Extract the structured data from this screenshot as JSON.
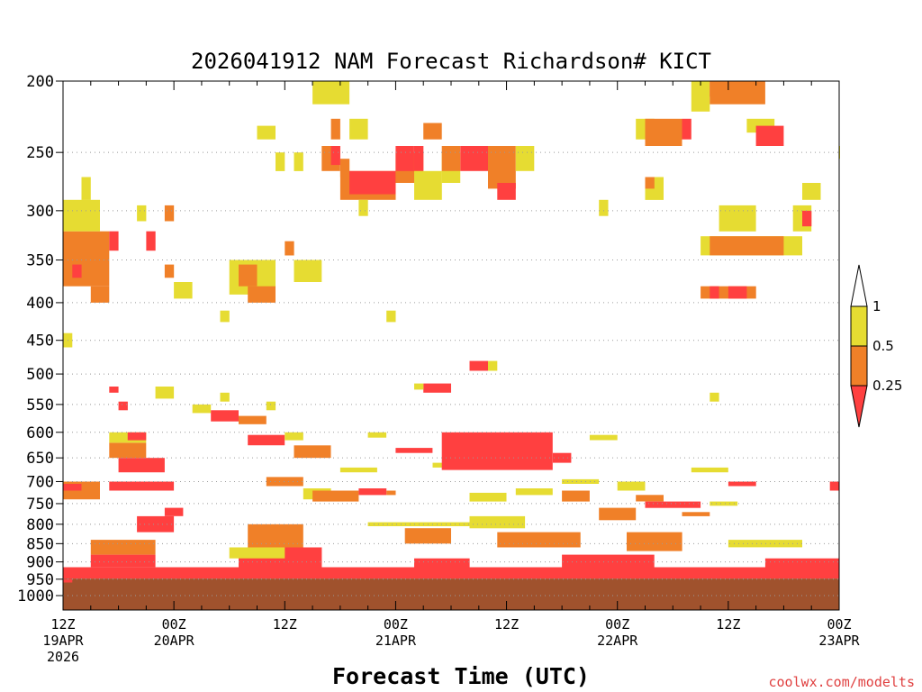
{
  "chart_data": {
    "type": "heatmap",
    "title": "2026041912 NAM Forecast Richardson# KICT",
    "xlabel": "Forecast Time (UTC)",
    "ylabel": "",
    "credit": "coolwx.com/modelts",
    "y_scale": "log-pressure",
    "y_range_hPa": [
      1000,
      200
    ],
    "y_ticks": [
      "200",
      "250",
      "300",
      "350",
      "400",
      "450",
      "500",
      "550",
      "600",
      "650",
      "700",
      "750",
      "800",
      "850",
      "900",
      "950",
      "1000"
    ],
    "x_range_hours": [
      0,
      84
    ],
    "x_ticks": [
      {
        "hour": 0,
        "line1": "12Z",
        "line2": "19APR",
        "line3": "2026"
      },
      {
        "hour": 12,
        "line1": "00Z",
        "line2": "20APR",
        "line3": ""
      },
      {
        "hour": 24,
        "line1": "12Z",
        "line2": "",
        "line3": ""
      },
      {
        "hour": 36,
        "line1": "00Z",
        "line2": "21APR",
        "line3": ""
      },
      {
        "hour": 48,
        "line1": "12Z",
        "line2": "",
        "line3": ""
      },
      {
        "hour": 60,
        "line1": "00Z",
        "line2": "22APR",
        "line3": ""
      },
      {
        "hour": 72,
        "line1": "12Z",
        "line2": "",
        "line3": ""
      },
      {
        "hour": 84,
        "line1": "00Z",
        "line2": "23APR",
        "line3": ""
      }
    ],
    "grid": "dotted horizontal at pressure ticks",
    "legend": {
      "placement": "right",
      "levels": [
        {
          "label": "0.25",
          "color": "#ff4040",
          "range": "< 0.25"
        },
        {
          "label": "0.5",
          "color": "#f08028",
          "range": "0.25 - 0.5"
        },
        {
          "label": "1",
          "color": "#e6dc32",
          "range": "0.5 - 1"
        },
        {
          "label": "",
          "color": "#ffffff",
          "range": "> 1"
        }
      ]
    },
    "ground_color": "#a0522d",
    "regions": [
      {
        "t0": 0,
        "t1": 84,
        "p0": 1000,
        "p1": 948,
        "cat": "ground"
      },
      {
        "t0": 0,
        "t1": 84,
        "p0": 948,
        "p1": 915,
        "cat": "red"
      },
      {
        "t0": 3,
        "t1": 10,
        "p0": 915,
        "p1": 880,
        "cat": "red"
      },
      {
        "t0": 19,
        "t1": 28,
        "p0": 920,
        "p1": 860,
        "cat": "red"
      },
      {
        "t0": 38,
        "t1": 44,
        "p0": 915,
        "p1": 890,
        "cat": "red"
      },
      {
        "t0": 54,
        "t1": 64,
        "p0": 918,
        "p1": 880,
        "cat": "red"
      },
      {
        "t0": 76,
        "t1": 84,
        "p0": 918,
        "p1": 890,
        "cat": "red"
      },
      {
        "t0": 3,
        "t1": 10,
        "p0": 880,
        "p1": 840,
        "cat": "orange"
      },
      {
        "t0": 20,
        "t1": 26,
        "p0": 860,
        "p1": 800,
        "cat": "orange"
      },
      {
        "t0": 37,
        "t1": 42,
        "p0": 850,
        "p1": 810,
        "cat": "orange"
      },
      {
        "t0": 47,
        "t1": 56,
        "p0": 860,
        "p1": 820,
        "cat": "orange"
      },
      {
        "t0": 61,
        "t1": 67,
        "p0": 870,
        "p1": 820,
        "cat": "orange"
      },
      {
        "t0": 8,
        "t1": 12,
        "p0": 820,
        "p1": 780,
        "cat": "red"
      },
      {
        "t0": 44,
        "t1": 50,
        "p0": 810,
        "p1": 780,
        "cat": "yellow"
      },
      {
        "t0": 33,
        "t1": 46,
        "p0": 805,
        "p1": 795,
        "cat": "yellow"
      },
      {
        "t0": 72,
        "t1": 80,
        "p0": 860,
        "p1": 840,
        "cat": "yellow"
      },
      {
        "t0": 18,
        "t1": 24,
        "p0": 890,
        "p1": 860,
        "cat": "yellow"
      },
      {
        "t0": 0,
        "t1": 1,
        "p0": 960,
        "p1": 950,
        "cat": "red"
      },
      {
        "t0": 0,
        "t1": 4,
        "p0": 740,
        "p1": 700,
        "cat": "orange"
      },
      {
        "t0": 0,
        "t1": 2,
        "p0": 720,
        "p1": 705,
        "cat": "red"
      },
      {
        "t0": 5,
        "t1": 12,
        "p0": 720,
        "p1": 700,
        "cat": "red"
      },
      {
        "t0": 6,
        "t1": 11,
        "p0": 680,
        "p1": 650,
        "cat": "red"
      },
      {
        "t0": 5,
        "t1": 9,
        "p0": 650,
        "p1": 620,
        "cat": "orange"
      },
      {
        "t0": 5,
        "t1": 9,
        "p0": 620,
        "p1": 600,
        "cat": "yellow"
      },
      {
        "t0": 7,
        "t1": 9,
        "p0": 615,
        "p1": 600,
        "cat": "red"
      },
      {
        "t0": 11,
        "t1": 13,
        "p0": 780,
        "p1": 760,
        "cat": "red"
      },
      {
        "t0": 14,
        "t1": 16,
        "p0": 565,
        "p1": 550,
        "cat": "yellow"
      },
      {
        "t0": 16,
        "t1": 19,
        "p0": 580,
        "p1": 560,
        "cat": "red"
      },
      {
        "t0": 19,
        "t1": 22,
        "p0": 585,
        "p1": 570,
        "cat": "orange"
      },
      {
        "t0": 20,
        "t1": 24,
        "p0": 625,
        "p1": 605,
        "cat": "red"
      },
      {
        "t0": 24,
        "t1": 26,
        "p0": 615,
        "p1": 600,
        "cat": "yellow"
      },
      {
        "t0": 25,
        "t1": 29,
        "p0": 650,
        "p1": 625,
        "cat": "orange"
      },
      {
        "t0": 22,
        "t1": 26,
        "p0": 710,
        "p1": 690,
        "cat": "orange"
      },
      {
        "t0": 26,
        "t1": 29,
        "p0": 740,
        "p1": 715,
        "cat": "yellow"
      },
      {
        "t0": 27,
        "t1": 32,
        "p0": 745,
        "p1": 720,
        "cat": "orange"
      },
      {
        "t0": 32,
        "t1": 35,
        "p0": 730,
        "p1": 715,
        "cat": "red"
      },
      {
        "t0": 35,
        "t1": 36,
        "p0": 730,
        "p1": 720,
        "cat": "orange"
      },
      {
        "t0": 30,
        "t1": 34,
        "p0": 680,
        "p1": 670,
        "cat": "yellow"
      },
      {
        "t0": 33,
        "t1": 35,
        "p0": 610,
        "p1": 600,
        "cat": "yellow"
      },
      {
        "t0": 36,
        "t1": 40,
        "p0": 640,
        "p1": 630,
        "cat": "red"
      },
      {
        "t0": 40,
        "t1": 42,
        "p0": 670,
        "p1": 660,
        "cat": "yellow"
      },
      {
        "t0": 41,
        "t1": 53,
        "p0": 675,
        "p1": 600,
        "cat": "red"
      },
      {
        "t0": 53,
        "t1": 55,
        "p0": 660,
        "p1": 640,
        "cat": "red"
      },
      {
        "t0": 44,
        "t1": 48,
        "p0": 745,
        "p1": 725,
        "cat": "yellow"
      },
      {
        "t0": 49,
        "t1": 53,
        "p0": 730,
        "p1": 715,
        "cat": "yellow"
      },
      {
        "t0": 54,
        "t1": 57,
        "p0": 745,
        "p1": 720,
        "cat": "orange"
      },
      {
        "t0": 54,
        "t1": 58,
        "p0": 705,
        "p1": 695,
        "cat": "yellow"
      },
      {
        "t0": 57,
        "t1": 60,
        "p0": 615,
        "p1": 605,
        "cat": "yellow"
      },
      {
        "t0": 58,
        "t1": 62,
        "p0": 790,
        "p1": 760,
        "cat": "orange"
      },
      {
        "t0": 60,
        "t1": 63,
        "p0": 720,
        "p1": 700,
        "cat": "yellow"
      },
      {
        "t0": 62,
        "t1": 65,
        "p0": 745,
        "p1": 730,
        "cat": "orange"
      },
      {
        "t0": 63,
        "t1": 69,
        "p0": 760,
        "p1": 745,
        "cat": "red"
      },
      {
        "t0": 67,
        "t1": 70,
        "p0": 780,
        "p1": 770,
        "cat": "orange"
      },
      {
        "t0": 68,
        "t1": 72,
        "p0": 680,
        "p1": 670,
        "cat": "yellow"
      },
      {
        "t0": 72,
        "t1": 75,
        "p0": 710,
        "p1": 700,
        "cat": "red"
      },
      {
        "t0": 70,
        "t1": 73,
        "p0": 755,
        "p1": 745,
        "cat": "yellow"
      },
      {
        "t0": 83,
        "t1": 84,
        "p0": 720,
        "p1": 700,
        "cat": "red"
      },
      {
        "t0": 10,
        "t1": 12,
        "p0": 540,
        "p1": 520,
        "cat": "yellow"
      },
      {
        "t0": 5,
        "t1": 6,
        "p0": 530,
        "p1": 520,
        "cat": "red"
      },
      {
        "t0": 6,
        "t1": 7,
        "p0": 560,
        "p1": 545,
        "cat": "red"
      },
      {
        "t0": 17,
        "t1": 18,
        "p0": 545,
        "p1": 530,
        "cat": "yellow"
      },
      {
        "t0": 22,
        "t1": 23,
        "p0": 560,
        "p1": 545,
        "cat": "yellow"
      },
      {
        "t0": 39,
        "t1": 42,
        "p0": 530,
        "p1": 515,
        "cat": "red"
      },
      {
        "t0": 38,
        "t1": 39,
        "p0": 525,
        "p1": 515,
        "cat": "yellow"
      },
      {
        "t0": 44,
        "t1": 46,
        "p0": 495,
        "p1": 480,
        "cat": "red"
      },
      {
        "t0": 46,
        "t1": 47,
        "p0": 495,
        "p1": 480,
        "cat": "yellow"
      },
      {
        "t0": 35,
        "t1": 36,
        "p0": 425,
        "p1": 410,
        "cat": "yellow"
      },
      {
        "t0": 70,
        "t1": 71,
        "p0": 545,
        "p1": 530,
        "cat": "yellow"
      },
      {
        "t0": 0,
        "t1": 1,
        "p0": 460,
        "p1": 440,
        "cat": "yellow"
      },
      {
        "t0": 17,
        "t1": 18,
        "p0": 425,
        "p1": 410,
        "cat": "yellow"
      },
      {
        "t0": 0,
        "t1": 5,
        "p0": 380,
        "p1": 320,
        "cat": "orange"
      },
      {
        "t0": 0,
        "t1": 4,
        "p0": 320,
        "p1": 290,
        "cat": "yellow"
      },
      {
        "t0": 1,
        "t1": 2,
        "p0": 370,
        "p1": 355,
        "cat": "red"
      },
      {
        "t0": 5,
        "t1": 6,
        "p0": 340,
        "p1": 320,
        "cat": "red"
      },
      {
        "t0": 3,
        "t1": 5,
        "p0": 400,
        "p1": 380,
        "cat": "orange"
      },
      {
        "t0": 2,
        "t1": 3,
        "p0": 290,
        "p1": 270,
        "cat": "yellow"
      },
      {
        "t0": 9,
        "t1": 10,
        "p0": 340,
        "p1": 320,
        "cat": "red"
      },
      {
        "t0": 8,
        "t1": 9,
        "p0": 310,
        "p1": 295,
        "cat": "yellow"
      },
      {
        "t0": 11,
        "t1": 12,
        "p0": 310,
        "p1": 295,
        "cat": "orange"
      },
      {
        "t0": 11,
        "t1": 12,
        "p0": 370,
        "p1": 355,
        "cat": "orange"
      },
      {
        "t0": 12,
        "t1": 14,
        "p0": 395,
        "p1": 375,
        "cat": "yellow"
      },
      {
        "t0": 18,
        "t1": 23,
        "p0": 390,
        "p1": 350,
        "cat": "yellow"
      },
      {
        "t0": 19,
        "t1": 21,
        "p0": 380,
        "p1": 355,
        "cat": "orange"
      },
      {
        "t0": 20,
        "t1": 23,
        "p0": 400,
        "p1": 380,
        "cat": "orange"
      },
      {
        "t0": 24,
        "t1": 25,
        "p0": 345,
        "p1": 330,
        "cat": "orange"
      },
      {
        "t0": 25,
        "t1": 28,
        "p0": 375,
        "p1": 350,
        "cat": "yellow"
      },
      {
        "t0": 21,
        "t1": 23,
        "p0": 240,
        "p1": 230,
        "cat": "yellow"
      },
      {
        "t0": 23,
        "t1": 24,
        "p0": 265,
        "p1": 250,
        "cat": "yellow"
      },
      {
        "t0": 25,
        "t1": 26,
        "p0": 265,
        "p1": 250,
        "cat": "yellow"
      },
      {
        "t0": 27,
        "t1": 31,
        "p0": 215,
        "p1": 200,
        "cat": "yellow"
      },
      {
        "t0": 29,
        "t1": 30,
        "p0": 240,
        "p1": 225,
        "cat": "orange"
      },
      {
        "t0": 28,
        "t1": 30,
        "p0": 265,
        "p1": 245,
        "cat": "orange"
      },
      {
        "t0": 29,
        "t1": 30,
        "p0": 260,
        "p1": 245,
        "cat": "red"
      },
      {
        "t0": 30,
        "t1": 31,
        "p0": 270,
        "p1": 255,
        "cat": "orange"
      },
      {
        "t0": 31,
        "t1": 33,
        "p0": 240,
        "p1": 225,
        "cat": "yellow"
      },
      {
        "t0": 30,
        "t1": 36,
        "p0": 290,
        "p1": 265,
        "cat": "orange"
      },
      {
        "t0": 31,
        "t1": 36,
        "p0": 285,
        "p1": 265,
        "cat": "red"
      },
      {
        "t0": 32,
        "t1": 33,
        "p0": 305,
        "p1": 290,
        "cat": "yellow"
      },
      {
        "t0": 36,
        "t1": 39,
        "p0": 275,
        "p1": 250,
        "cat": "orange"
      },
      {
        "t0": 36,
        "t1": 38,
        "p0": 265,
        "p1": 245,
        "cat": "red"
      },
      {
        "t0": 38,
        "t1": 39,
        "p0": 265,
        "p1": 245,
        "cat": "red"
      },
      {
        "t0": 38,
        "t1": 41,
        "p0": 290,
        "p1": 265,
        "cat": "yellow"
      },
      {
        "t0": 39,
        "t1": 41,
        "p0": 240,
        "p1": 228,
        "cat": "orange"
      },
      {
        "t0": 41,
        "t1": 43,
        "p0": 275,
        "p1": 250,
        "cat": "yellow"
      },
      {
        "t0": 41,
        "t1": 43,
        "p0": 265,
        "p1": 245,
        "cat": "orange"
      },
      {
        "t0": 43,
        "t1": 46,
        "p0": 265,
        "p1": 245,
        "cat": "red"
      },
      {
        "t0": 46,
        "t1": 49,
        "p0": 280,
        "p1": 245,
        "cat": "orange"
      },
      {
        "t0": 47,
        "t1": 49,
        "p0": 290,
        "p1": 275,
        "cat": "red"
      },
      {
        "t0": 49,
        "t1": 51,
        "p0": 265,
        "p1": 245,
        "cat": "yellow"
      },
      {
        "t0": 58,
        "t1": 59,
        "p0": 305,
        "p1": 290,
        "cat": "yellow"
      },
      {
        "t0": 62,
        "t1": 64,
        "p0": 240,
        "p1": 225,
        "cat": "yellow"
      },
      {
        "t0": 63,
        "t1": 67,
        "p0": 245,
        "p1": 225,
        "cat": "orange"
      },
      {
        "t0": 67,
        "t1": 68,
        "p0": 240,
        "p1": 225,
        "cat": "red"
      },
      {
        "t0": 68,
        "t1": 70,
        "p0": 220,
        "p1": 200,
        "cat": "yellow"
      },
      {
        "t0": 70,
        "t1": 71,
        "p0": 210,
        "p1": 200,
        "cat": "red"
      },
      {
        "t0": 70,
        "t1": 76,
        "p0": 215,
        "p1": 200,
        "cat": "orange"
      },
      {
        "t0": 74,
        "t1": 77,
        "p0": 235,
        "p1": 225,
        "cat": "yellow"
      },
      {
        "t0": 75,
        "t1": 78,
        "p0": 245,
        "p1": 230,
        "cat": "red"
      },
      {
        "t0": 63,
        "t1": 65,
        "p0": 290,
        "p1": 270,
        "cat": "yellow"
      },
      {
        "t0": 63,
        "t1": 64,
        "p0": 280,
        "p1": 270,
        "cat": "orange"
      },
      {
        "t0": 71,
        "t1": 75,
        "p0": 320,
        "p1": 295,
        "cat": "yellow"
      },
      {
        "t0": 69,
        "t1": 80,
        "p0": 345,
        "p1": 325,
        "cat": "yellow"
      },
      {
        "t0": 70,
        "t1": 78,
        "p0": 345,
        "p1": 325,
        "cat": "orange"
      },
      {
        "t0": 79,
        "t1": 81,
        "p0": 320,
        "p1": 295,
        "cat": "yellow"
      },
      {
        "t0": 80,
        "t1": 81,
        "p0": 315,
        "p1": 300,
        "cat": "red"
      },
      {
        "t0": 80,
        "t1": 82,
        "p0": 290,
        "p1": 275,
        "cat": "yellow"
      },
      {
        "t0": 69,
        "t1": 75,
        "p0": 395,
        "p1": 380,
        "cat": "orange"
      },
      {
        "t0": 70,
        "t1": 71,
        "p0": 395,
        "p1": 380,
        "cat": "red"
      },
      {
        "t0": 72,
        "t1": 74,
        "p0": 395,
        "p1": 380,
        "cat": "red"
      },
      {
        "t0": 84,
        "t1": 84.3,
        "p0": 255,
        "p1": 245,
        "cat": "yellow"
      }
    ]
  }
}
